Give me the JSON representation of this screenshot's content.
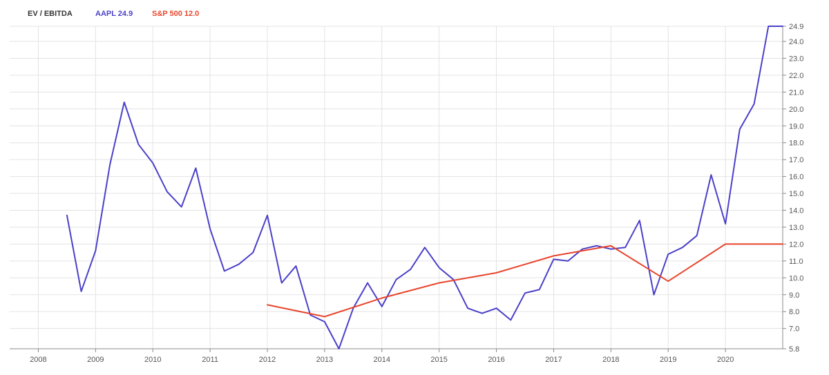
{
  "legend": {
    "title": "EV / EBITDA",
    "series_labels": [
      "AAPL 24.9",
      "S&P 500 12.0"
    ]
  },
  "colors": {
    "aapl": "#4a3fc9",
    "sp500": "#e8442c",
    "grid": "#e3e3e3",
    "axis": "#888888",
    "legend_title": "#333333"
  },
  "chart_data": {
    "type": "line",
    "title": "EV / EBITDA",
    "xlabel": "",
    "ylabel": "",
    "xlim": [
      2007.5,
      2021.0
    ],
    "ylim": [
      5.8,
      24.9
    ],
    "x_ticks": [
      "2008",
      "2009",
      "2010",
      "2011",
      "2012",
      "2013",
      "2014",
      "2015",
      "2016",
      "2017",
      "2018",
      "2019",
      "2020"
    ],
    "y_ticks": [
      "5.8",
      "7.0",
      "8.0",
      "9.0",
      "10.0",
      "11.0",
      "12.0",
      "13.0",
      "14.0",
      "15.0",
      "16.0",
      "17.0",
      "18.0",
      "19.0",
      "20.0",
      "21.0",
      "22.0",
      "23.0",
      "24.0",
      "24.9"
    ],
    "y_axis_position": "right",
    "grid": true,
    "legend_position": "top-left",
    "series": [
      {
        "name": "AAPL 24.9",
        "x": [
          2008.5,
          2008.75,
          2009.0,
          2009.25,
          2009.5,
          2009.75,
          2010.0,
          2010.25,
          2010.5,
          2010.75,
          2011.0,
          2011.25,
          2011.5,
          2011.75,
          2012.0,
          2012.25,
          2012.5,
          2012.75,
          2013.0,
          2013.25,
          2013.5,
          2013.75,
          2014.0,
          2014.25,
          2014.5,
          2014.75,
          2015.0,
          2015.25,
          2015.5,
          2015.75,
          2016.0,
          2016.25,
          2016.5,
          2016.75,
          2017.0,
          2017.25,
          2017.5,
          2017.75,
          2018.0,
          2018.25,
          2018.5,
          2018.75,
          2019.0,
          2019.25,
          2019.5,
          2019.75,
          2020.0,
          2020.25,
          2020.5,
          2020.75,
          2021.0
        ],
        "y": [
          13.7,
          9.2,
          11.6,
          16.7,
          20.4,
          17.9,
          16.8,
          15.1,
          14.2,
          16.5,
          12.9,
          10.4,
          10.8,
          11.5,
          13.7,
          9.7,
          10.7,
          7.8,
          7.4,
          5.8,
          8.2,
          9.7,
          8.3,
          9.9,
          10.5,
          11.8,
          10.6,
          9.9,
          8.2,
          7.9,
          8.2,
          7.5,
          9.1,
          9.3,
          11.1,
          11.0,
          11.7,
          11.9,
          11.7,
          11.8,
          13.4,
          9.0,
          11.4,
          11.8,
          12.5,
          16.1,
          13.2,
          18.8,
          20.3,
          24.9,
          24.9
        ]
      },
      {
        "name": "S&P 500 12.0",
        "x": [
          2012.0,
          2013.0,
          2014.0,
          2015.0,
          2016.0,
          2017.0,
          2018.0,
          2019.0,
          2020.0,
          2021.0
        ],
        "y": [
          8.4,
          7.7,
          8.8,
          9.7,
          10.3,
          11.3,
          11.9,
          9.8,
          12.0,
          12.0
        ]
      }
    ]
  }
}
